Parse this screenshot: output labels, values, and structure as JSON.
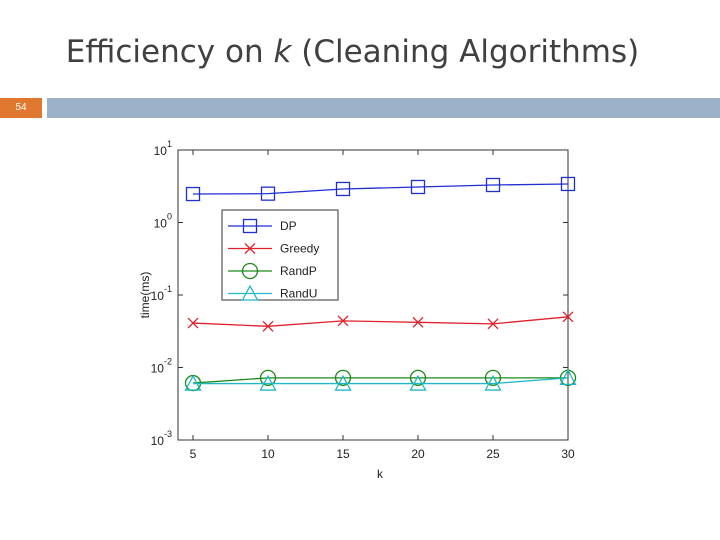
{
  "slide": {
    "title": [
      "Efficiency on ",
      "k",
      " (Cleaning Algorithms)"
    ],
    "number": "54"
  },
  "chart_data": {
    "type": "line",
    "x_label": "k",
    "y_label": "time(ms)",
    "log_y": true,
    "grid": false,
    "legend": "upper left",
    "x": [
      5,
      10,
      15,
      20,
      25,
      30
    ],
    "xlim": [
      4,
      30
    ],
    "xticks": [
      5,
      10,
      15,
      20,
      25,
      30
    ],
    "ylim": [
      0.001,
      10
    ],
    "yticks": [
      {
        "value": 0.001,
        "label": "10^-3"
      },
      {
        "value": 0.01,
        "label": "10^-2"
      },
      {
        "value": 0.1,
        "label": "10^-1"
      },
      {
        "value": 1,
        "label": "10^0"
      },
      {
        "value": 10,
        "label": "10^1"
      }
    ],
    "series": [
      {
        "name": "DP",
        "color": "#1f2fd0",
        "marker": "square",
        "values": [
          2.47,
          2.5,
          2.9,
          3.09,
          3.29,
          3.4
        ]
      },
      {
        "name": "Greedy",
        "color": "#e0202a",
        "marker": "x",
        "values": [
          0.041,
          0.037,
          0.044,
          0.042,
          0.04,
          0.05
        ]
      },
      {
        "name": "RandP",
        "color": "#1a8a1a",
        "marker": "circle",
        "values": [
          0.0061,
          0.0072,
          0.0072,
          0.0072,
          0.0072,
          0.0072
        ]
      },
      {
        "name": "RandU",
        "color": "#20b8c8",
        "marker": "triangle",
        "values": [
          0.006,
          0.006,
          0.006,
          0.006,
          0.006,
          0.0072
        ]
      }
    ]
  }
}
